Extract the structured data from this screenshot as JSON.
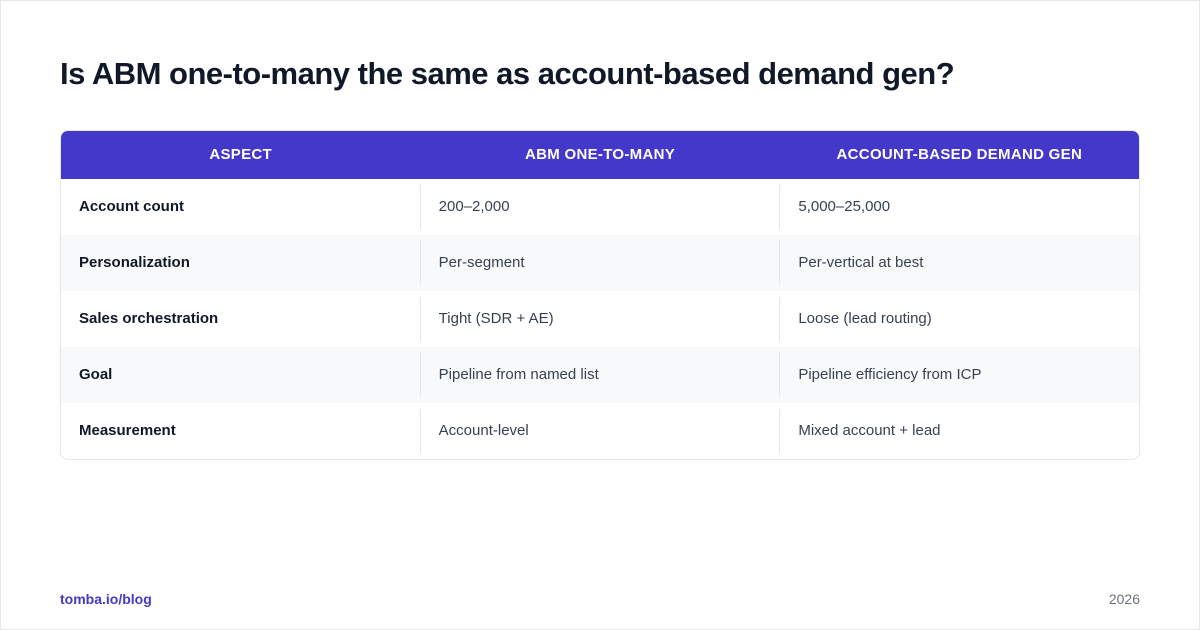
{
  "title": "Is ABM one-to-many the same as account-based demand gen?",
  "table": {
    "header": [
      "ASPECT",
      "ABM ONE-TO-MANY",
      "ACCOUNT-BASED DEMAND GEN"
    ],
    "rows": [
      [
        "Account count",
        "200–2,000",
        "5,000–25,000"
      ],
      [
        "Personalization",
        "Per-segment",
        "Per-vertical at best"
      ],
      [
        "Sales orchestration",
        "Tight (SDR + AE)",
        "Loose (lead routing)"
      ],
      [
        "Goal",
        "Pipeline from named list",
        "Pipeline efficiency from ICP"
      ],
      [
        "Measurement",
        "Account-level",
        "Mixed account + lead"
      ]
    ]
  },
  "footer": {
    "source": "tomba.io/blog",
    "year": "2026"
  }
}
